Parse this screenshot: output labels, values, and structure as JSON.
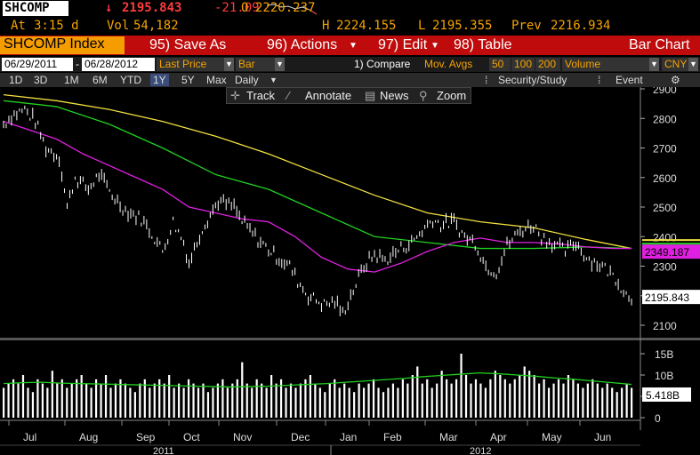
{
  "quote": {
    "ticker": "SHCOMP",
    "arrow": "↓",
    "last": "2195.843",
    "change": "-21.09",
    "time_label": "At",
    "time": "3:15 d",
    "vol_label": "Vol",
    "vol": "54,182",
    "open_label": "O",
    "open": "2220.237",
    "high_label": "H",
    "high": "2224.155",
    "low_label": "L",
    "low": "2195.355",
    "prev_label": "Prev",
    "prev": "2216.934"
  },
  "menu": {
    "index": "SHCOMP Index",
    "save": "95) Save As",
    "actions": "96) Actions",
    "edit": "97) Edit",
    "table": "98) Table",
    "chart_type": "Bar Chart"
  },
  "controls": {
    "start": "06/29/2011",
    "end": "06/28/2012",
    "price": "Last Price",
    "style": "Bar",
    "compare": "1) Compare",
    "mov_avgs": "Mov. Avgs",
    "ma1": "50",
    "ma2": "100",
    "ma3": "200",
    "volume": "Volume",
    "currency": "CNY"
  },
  "periods": {
    "items": [
      "1D",
      "3D",
      "1M",
      "6M",
      "YTD",
      "1Y",
      "5Y",
      "Max"
    ],
    "selected": "1Y",
    "freq": "Daily",
    "security": "Security/Study",
    "event": "Event"
  },
  "tools": {
    "track": "Track",
    "annotate": "Annotate",
    "news": "News",
    "zoom": "Zoom"
  },
  "colors": {
    "ma50": "#e020e0",
    "ma100": "#20d020",
    "ma200": "#f0e040",
    "vol_ma": "#20d020",
    "accent": "#f5a300",
    "menu_bar": "#bf0b0b"
  },
  "chart_data": {
    "type": "bar",
    "price_axis": {
      "min": 2100,
      "max": 2900,
      "ticks": [
        2100,
        2200,
        2300,
        2400,
        2500,
        2600,
        2700,
        2800,
        2900
      ]
    },
    "volume_axis": {
      "min": 0,
      "max": 15,
      "ticks": [
        {
          "v": 0,
          "l": "0"
        },
        {
          "v": 5,
          "l": "5B"
        },
        {
          "v": 10,
          "l": "10B"
        },
        {
          "v": 15,
          "l": "15B"
        }
      ]
    },
    "months": [
      "Jul",
      "Aug",
      "Sep",
      "Oct",
      "Nov",
      "Dec",
      "Jan",
      "Feb",
      "Mar",
      "Apr",
      "May",
      "Jun"
    ],
    "years": [
      "2011",
      "2012"
    ],
    "price_points": [
      [
        0,
        2780
      ],
      [
        3,
        2810
      ],
      [
        8,
        2830
      ],
      [
        12,
        2790
      ],
      [
        16,
        2700
      ],
      [
        21,
        2670
      ],
      [
        24,
        2500
      ],
      [
        27,
        2600
      ],
      [
        32,
        2560
      ],
      [
        36,
        2610
      ],
      [
        41,
        2540
      ],
      [
        46,
        2490
      ],
      [
        52,
        2460
      ],
      [
        56,
        2410
      ],
      [
        60,
        2350
      ],
      [
        64,
        2450
      ],
      [
        68,
        2380
      ],
      [
        70,
        2310
      ],
      [
        75,
        2430
      ],
      [
        81,
        2520
      ],
      [
        87,
        2500
      ],
      [
        90,
        2450
      ],
      [
        96,
        2390
      ],
      [
        102,
        2340
      ],
      [
        108,
        2300
      ],
      [
        111,
        2250
      ],
      [
        115,
        2200
      ],
      [
        121,
        2170
      ],
      [
        125,
        2180
      ],
      [
        128,
        2140
      ],
      [
        132,
        2220
      ],
      [
        136,
        2300
      ],
      [
        140,
        2340
      ],
      [
        144,
        2320
      ],
      [
        150,
        2360
      ],
      [
        154,
        2380
      ],
      [
        158,
        2420
      ],
      [
        162,
        2460
      ],
      [
        165,
        2440
      ],
      [
        170,
        2450
      ],
      [
        174,
        2400
      ],
      [
        178,
        2380
      ],
      [
        182,
        2300
      ],
      [
        186,
        2280
      ],
      [
        190,
        2370
      ],
      [
        195,
        2420
      ],
      [
        200,
        2440
      ],
      [
        203,
        2400
      ],
      [
        207,
        2380
      ],
      [
        212,
        2350
      ],
      [
        216,
        2380
      ],
      [
        220,
        2330
      ],
      [
        226,
        2300
      ],
      [
        231,
        2260
      ],
      [
        235,
        2205
      ],
      [
        237,
        2195
      ]
    ],
    "ma50": [
      [
        0,
        2790
      ],
      [
        10,
        2760
      ],
      [
        20,
        2730
      ],
      [
        30,
        2680
      ],
      [
        40,
        2640
      ],
      [
        50,
        2600
      ],
      [
        60,
        2560
      ],
      [
        70,
        2500
      ],
      [
        80,
        2480
      ],
      [
        90,
        2460
      ],
      [
        100,
        2450
      ],
      [
        110,
        2400
      ],
      [
        120,
        2330
      ],
      [
        130,
        2290
      ],
      [
        140,
        2280
      ],
      [
        150,
        2310
      ],
      [
        160,
        2350
      ],
      [
        170,
        2380
      ],
      [
        180,
        2395
      ],
      [
        190,
        2380
      ],
      [
        200,
        2380
      ],
      [
        210,
        2375
      ],
      [
        220,
        2365
      ],
      [
        230,
        2360
      ],
      [
        237,
        2360
      ]
    ],
    "ma100": [
      [
        0,
        2860
      ],
      [
        20,
        2840
      ],
      [
        40,
        2780
      ],
      [
        60,
        2700
      ],
      [
        80,
        2610
      ],
      [
        100,
        2560
      ],
      [
        120,
        2480
      ],
      [
        140,
        2400
      ],
      [
        160,
        2380
      ],
      [
        180,
        2360
      ],
      [
        200,
        2360
      ],
      [
        220,
        2365
      ],
      [
        237,
        2360
      ]
    ],
    "ma200": [
      [
        0,
        2880
      ],
      [
        20,
        2860
      ],
      [
        40,
        2830
      ],
      [
        60,
        2790
      ],
      [
        80,
        2740
      ],
      [
        100,
        2680
      ],
      [
        120,
        2610
      ],
      [
        140,
        2540
      ],
      [
        160,
        2480
      ],
      [
        180,
        2450
      ],
      [
        200,
        2430
      ],
      [
        220,
        2390
      ],
      [
        237,
        2360
      ]
    ],
    "volume": [
      7,
      8,
      9,
      8,
      10,
      7,
      6,
      9,
      8,
      7,
      11,
      8,
      9,
      7,
      8,
      9,
      10,
      8,
      7,
      9,
      8,
      10,
      7,
      8,
      9,
      8,
      7,
      6,
      8,
      9,
      7,
      8,
      9,
      8,
      10,
      7,
      8,
      7,
      9,
      8,
      7,
      8,
      6,
      7,
      8,
      9,
      7,
      8,
      9,
      13,
      8,
      7,
      9,
      8,
      7,
      10,
      8,
      9,
      7,
      8,
      7,
      8,
      9,
      10,
      8,
      7,
      6,
      8,
      9,
      7,
      8,
      7,
      6,
      8,
      7,
      8,
      9,
      7,
      6,
      7,
      8,
      7,
      9,
      8,
      10,
      12,
      8,
      9,
      7,
      8,
      11,
      9,
      8,
      9,
      15,
      10,
      8,
      9,
      8,
      7,
      9,
      11,
      10,
      9,
      8,
      9,
      10,
      12,
      11,
      10,
      8,
      9,
      7,
      8,
      9,
      8,
      10,
      9,
      8,
      7,
      8,
      9,
      8,
      7,
      8,
      7,
      6,
      7,
      8,
      7
    ],
    "volume_ma": [
      8,
      8.2,
      8.3,
      8.1,
      8,
      7.9,
      7.8,
      7.7,
      7.6,
      7.5,
      7.4,
      7.3,
      7.2,
      7.3,
      7.4,
      7.6,
      7.8,
      8,
      8.3,
      8.6,
      8.9,
      9.2,
      9.6,
      9.9,
      10.2,
      10.5,
      10.3,
      10,
      9.7,
      9.3,
      9,
      8.6,
      8.2,
      7.8
    ],
    "last_label": "2195.843",
    "ma_label": "2349.187",
    "vol_label": "5.418B"
  }
}
